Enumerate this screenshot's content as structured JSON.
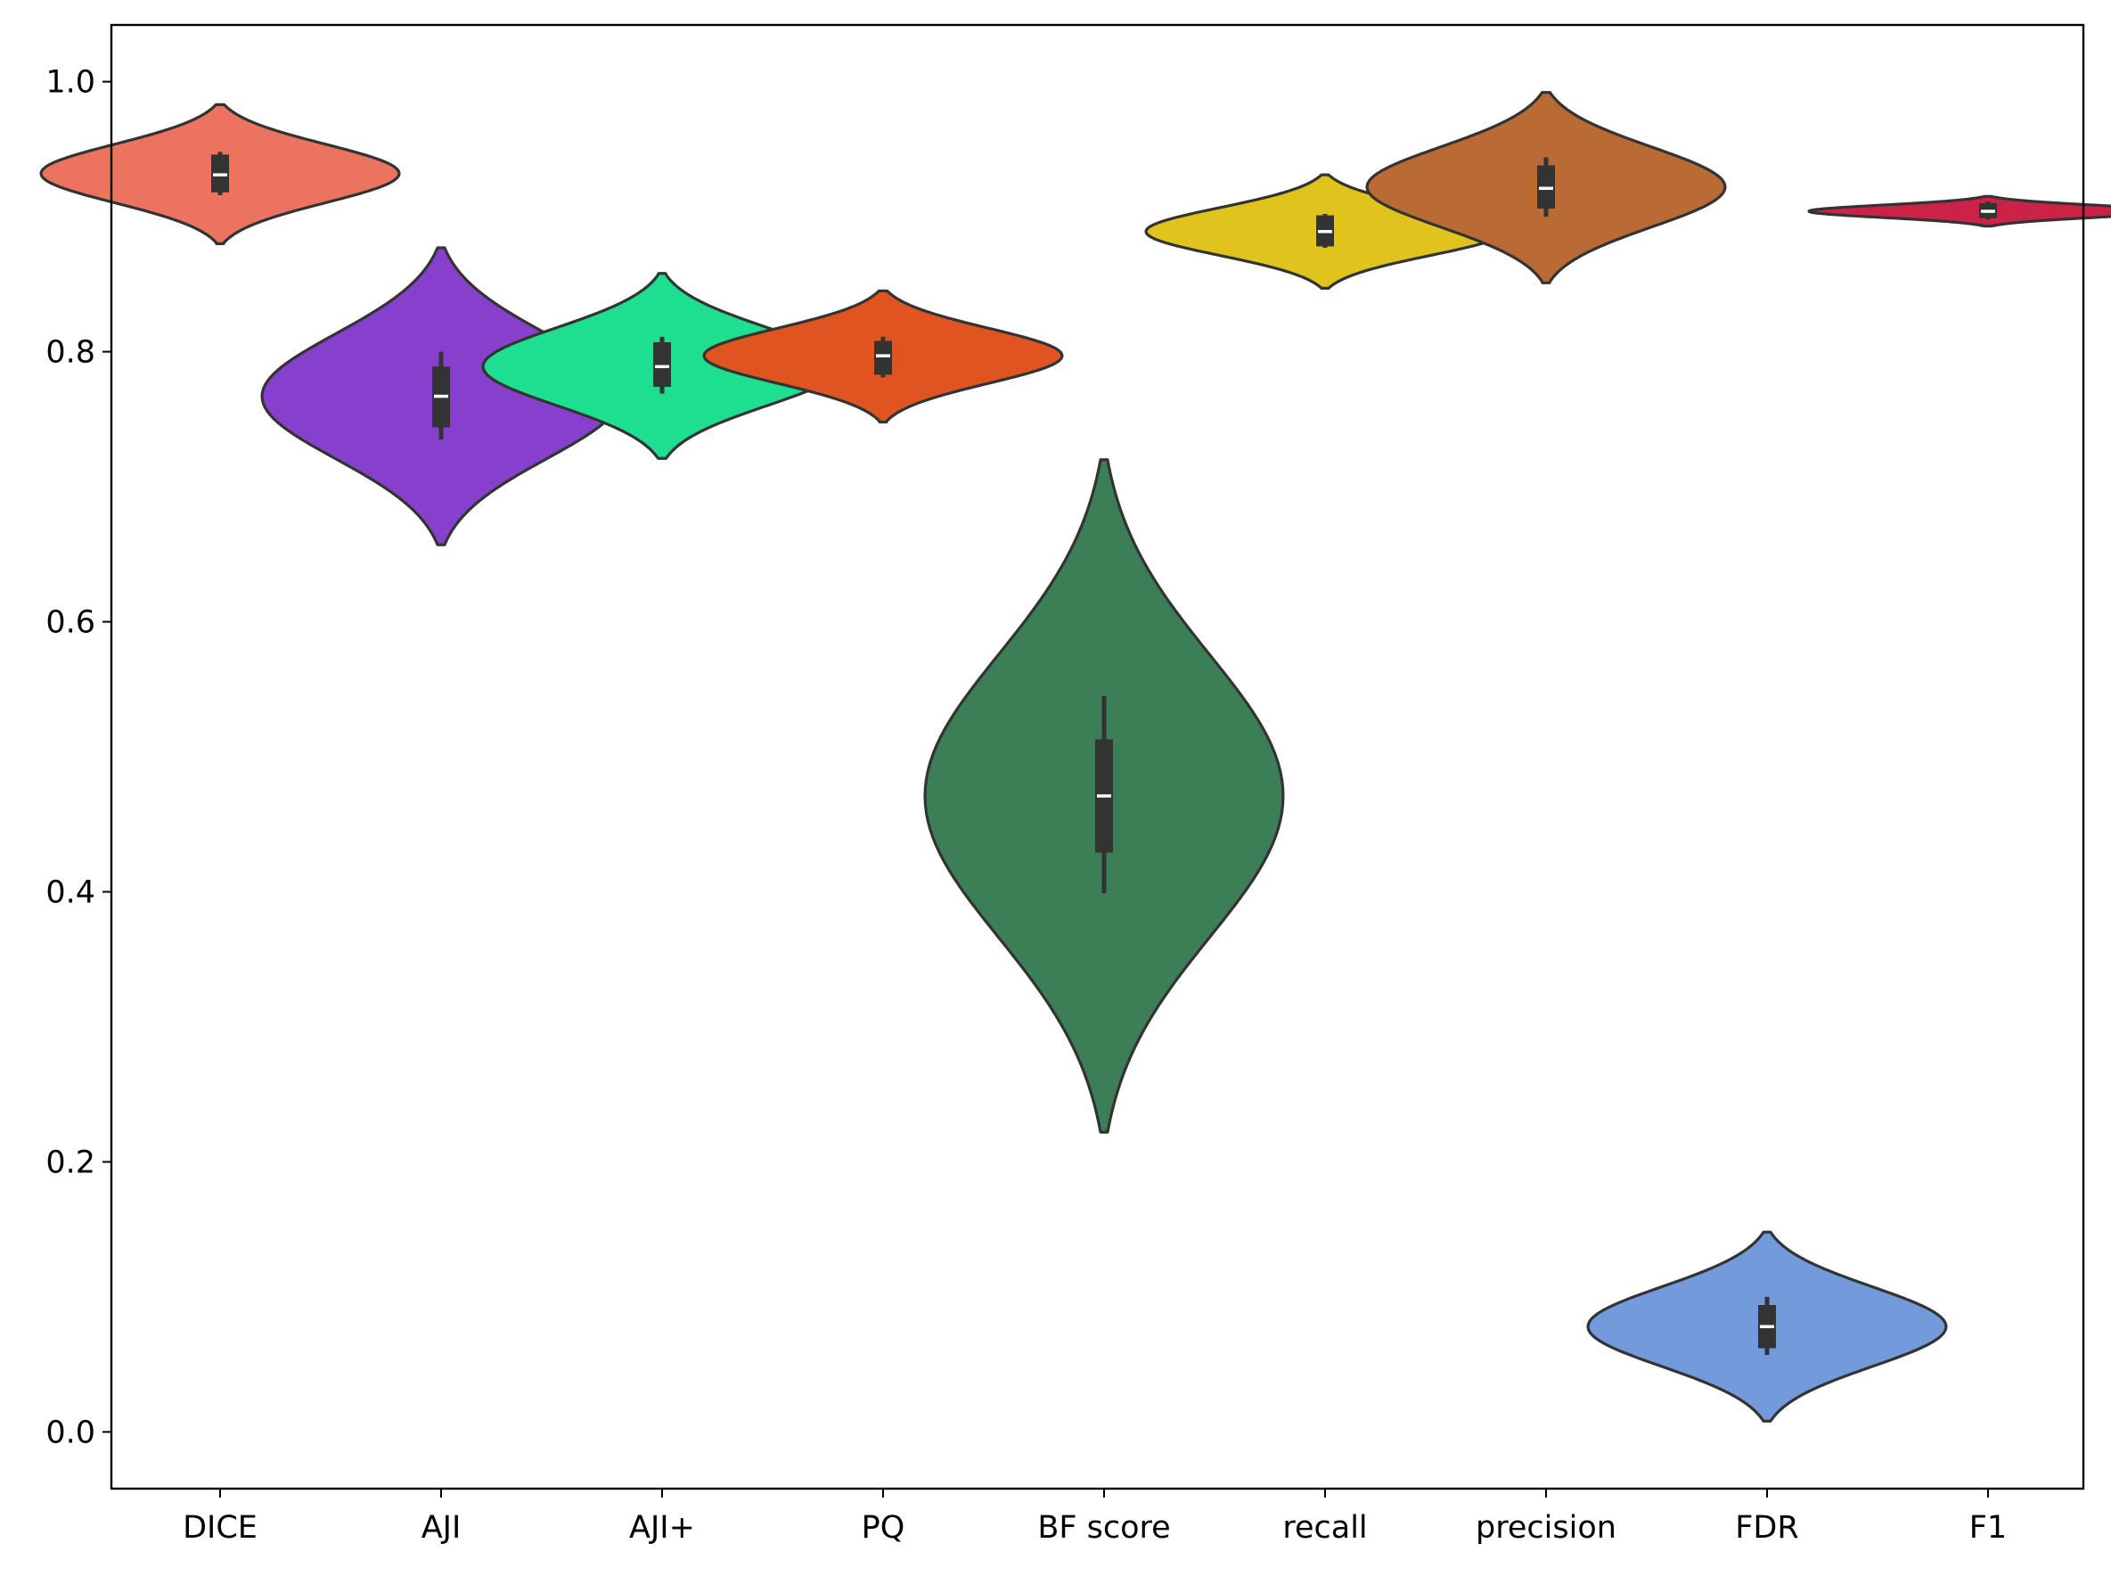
{
  "chart_data": {
    "type": "violin",
    "title": "",
    "xlabel": "",
    "ylabel": "",
    "ylim": [
      -0.042,
      1.042
    ],
    "yticks": [
      0.0,
      0.2,
      0.4,
      0.6,
      0.8,
      1.0
    ],
    "ytick_labels": [
      "0.0",
      "0.2",
      "0.4",
      "0.6",
      "0.8",
      "1.0"
    ],
    "grid": false,
    "legend": "none",
    "categories": [
      "DICE",
      "AJI",
      "AJI+",
      "PQ",
      "BF score",
      "recall",
      "precision",
      "FDR",
      "F1"
    ],
    "series": [
      {
        "name": "DICE",
        "color": "#EB735F",
        "min": 0.88,
        "max": 0.983,
        "density_center": 0.932,
        "max_halfwidth": 0.5,
        "whisker_low": 0.916,
        "q1": 0.918,
        "median": 0.931,
        "q3": 0.946,
        "whisker_high": 0.948
      },
      {
        "name": "AJI",
        "color": "#8640CB",
        "min": 0.657,
        "max": 0.877,
        "density_center": 0.767,
        "max_halfwidth": 0.5,
        "whisker_low": 0.735,
        "q1": 0.744,
        "median": 0.767,
        "q3": 0.789,
        "whisker_high": 0.8
      },
      {
        "name": "AJI+",
        "color": "#1EDE8F",
        "min": 0.721,
        "max": 0.858,
        "density_center": 0.789,
        "max_halfwidth": 0.5,
        "whisker_low": 0.769,
        "q1": 0.774,
        "median": 0.789,
        "q3": 0.807,
        "whisker_high": 0.811
      },
      {
        "name": "PQ",
        "color": "#E0551F",
        "min": 0.748,
        "max": 0.845,
        "density_center": 0.797,
        "max_halfwidth": 0.5,
        "whisker_low": 0.781,
        "q1": 0.783,
        "median": 0.797,
        "q3": 0.808,
        "whisker_high": 0.811
      },
      {
        "name": "BF score",
        "color": "#3C7F57",
        "min": 0.222,
        "max": 0.72,
        "density_center": 0.471,
        "max_halfwidth": 0.5,
        "whisker_low": 0.399,
        "q1": 0.429,
        "median": 0.471,
        "q3": 0.513,
        "whisker_high": 0.545
      },
      {
        "name": "recall",
        "color": "#E0C31D",
        "min": 0.847,
        "max": 0.931,
        "density_center": 0.889,
        "max_halfwidth": 0.5,
        "whisker_low": 0.877,
        "q1": 0.878,
        "median": 0.889,
        "q3": 0.901,
        "whisker_high": 0.902
      },
      {
        "name": "precision",
        "color": "#BA6A33",
        "min": 0.851,
        "max": 0.992,
        "density_center": 0.922,
        "max_halfwidth": 0.5,
        "whisker_low": 0.9,
        "q1": 0.906,
        "median": 0.921,
        "q3": 0.938,
        "whisker_high": 0.944
      },
      {
        "name": "FDR",
        "color": "#739BDC",
        "min": 0.008,
        "max": 0.148,
        "density_center": 0.078,
        "max_halfwidth": 0.5,
        "whisker_low": 0.057,
        "q1": 0.062,
        "median": 0.078,
        "q3": 0.094,
        "whisker_high": 0.1
      },
      {
        "name": "F1",
        "color": "#CB2248",
        "min": 0.893,
        "max": 0.915,
        "density_center": 0.904,
        "max_halfwidth": 0.5,
        "whisker_low": 0.898,
        "q1": 0.899,
        "median": 0.904,
        "q3": 0.91,
        "whisker_high": 0.911
      }
    ]
  }
}
